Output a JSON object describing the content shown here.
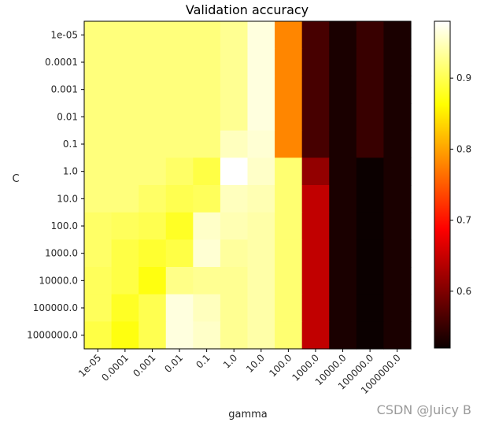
{
  "chart_data": {
    "type": "heatmap",
    "title": "Validation accuracy",
    "xlabel": "gamma",
    "ylabel": "C",
    "x_categories": [
      "1e-05",
      "0.0001",
      "0.001",
      "0.01",
      "0.1",
      "1.0",
      "10.0",
      "100.0",
      "1000.0",
      "10000.0",
      "100000.0",
      "1000000.0"
    ],
    "y_categories": [
      "1e-05",
      "0.0001",
      "0.001",
      "0.01",
      "0.1",
      "1.0",
      "10.0",
      "100.0",
      "1000.0",
      "10000.0",
      "100000.0",
      "1000000.0"
    ],
    "values": [
      [
        0.92,
        0.92,
        0.92,
        0.92,
        0.92,
        0.93,
        0.965,
        0.78,
        0.56,
        0.53,
        0.55,
        0.53
      ],
      [
        0.92,
        0.92,
        0.92,
        0.92,
        0.92,
        0.93,
        0.965,
        0.78,
        0.56,
        0.53,
        0.55,
        0.53
      ],
      [
        0.92,
        0.92,
        0.92,
        0.92,
        0.92,
        0.93,
        0.965,
        0.78,
        0.56,
        0.53,
        0.55,
        0.53
      ],
      [
        0.92,
        0.92,
        0.92,
        0.92,
        0.92,
        0.93,
        0.965,
        0.78,
        0.56,
        0.53,
        0.55,
        0.53
      ],
      [
        0.92,
        0.92,
        0.92,
        0.92,
        0.92,
        0.95,
        0.96,
        0.78,
        0.56,
        0.53,
        0.55,
        0.53
      ],
      [
        0.92,
        0.92,
        0.92,
        0.91,
        0.895,
        0.98,
        0.955,
        0.915,
        0.61,
        0.53,
        0.52,
        0.53
      ],
      [
        0.92,
        0.92,
        0.91,
        0.9,
        0.905,
        0.95,
        0.945,
        0.915,
        0.64,
        0.53,
        0.52,
        0.53
      ],
      [
        0.91,
        0.905,
        0.9,
        0.88,
        0.955,
        0.945,
        0.94,
        0.915,
        0.64,
        0.53,
        0.52,
        0.53
      ],
      [
        0.91,
        0.895,
        0.885,
        0.895,
        0.96,
        0.935,
        0.94,
        0.915,
        0.64,
        0.53,
        0.52,
        0.53
      ],
      [
        0.905,
        0.895,
        0.87,
        0.925,
        0.93,
        0.93,
        0.94,
        0.915,
        0.64,
        0.53,
        0.52,
        0.53
      ],
      [
        0.905,
        0.88,
        0.9,
        0.965,
        0.95,
        0.93,
        0.94,
        0.915,
        0.64,
        0.53,
        0.52,
        0.53
      ],
      [
        0.895,
        0.87,
        0.9,
        0.965,
        0.955,
        0.93,
        0.94,
        0.915,
        0.64,
        0.53,
        0.52,
        0.53
      ]
    ],
    "colormap": "hot",
    "vmin": 0.52,
    "vmax": 0.98,
    "colorbar_ticks": [
      0.6,
      0.7,
      0.8,
      0.9
    ],
    "colorbar_tick_labels": [
      "0.6",
      "0.7",
      "0.8",
      "0.9"
    ],
    "grid": false,
    "colorbar_position": "right"
  },
  "watermark": "CSDN @Juicy B"
}
